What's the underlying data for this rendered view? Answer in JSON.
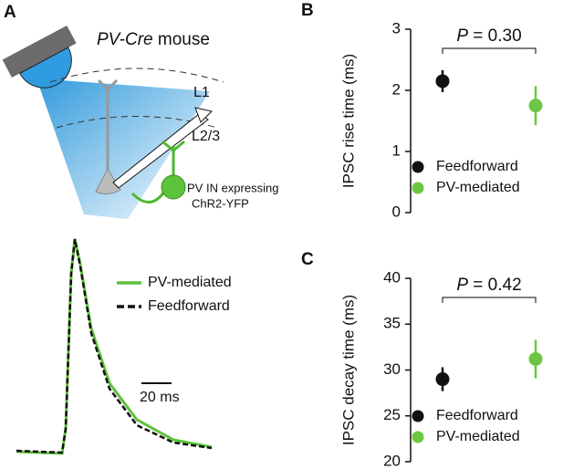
{
  "panel_a": {
    "label": "A",
    "title_italic": "PV-Cre",
    "title_rest": " mouse",
    "layer_top": "L1",
    "layer_bottom": "L2/3",
    "cell_line1": "PV IN expressing",
    "cell_line2": "ChR2-YFP",
    "trace_legend": [
      {
        "name": "PV-mediated",
        "color": "#5dc33a"
      },
      {
        "name": "Feedforward",
        "color": "#111111"
      }
    ],
    "scale_bar": "20 ms"
  },
  "chart_data": [
    {
      "type": "pointrange",
      "label": "B",
      "ylabel": "IPSC rise time (ms)",
      "categories": [
        null,
        null
      ],
      "series": [
        {
          "name": "Feedforward",
          "color": "#111111",
          "values": [
            2.15,
            null
          ],
          "errors": [
            0.18,
            null
          ]
        },
        {
          "name": "PV-mediated",
          "color": "#6cc644",
          "values": [
            null,
            1.75
          ],
          "errors": [
            null,
            0.32
          ]
        }
      ],
      "ylim": [
        0,
        3
      ],
      "yticks": [
        0,
        1,
        2,
        3
      ],
      "p_symbol": "P",
      "p_text": " = 0.30"
    },
    {
      "type": "pointrange",
      "label": "C",
      "ylabel": "IPSC decay time (ms)",
      "categories": [
        null,
        null
      ],
      "series": [
        {
          "name": "Feedforward",
          "color": "#111111",
          "values": [
            29.0,
            null
          ],
          "errors": [
            1.3,
            null
          ]
        },
        {
          "name": "PV-mediated",
          "color": "#6cc644",
          "values": [
            null,
            31.2
          ],
          "errors": [
            null,
            2.1
          ]
        }
      ],
      "ylim": [
        20,
        40
      ],
      "yticks": [
        20,
        25,
        30,
        35,
        40
      ],
      "p_symbol": "P",
      "p_text": " = 0.42"
    }
  ]
}
